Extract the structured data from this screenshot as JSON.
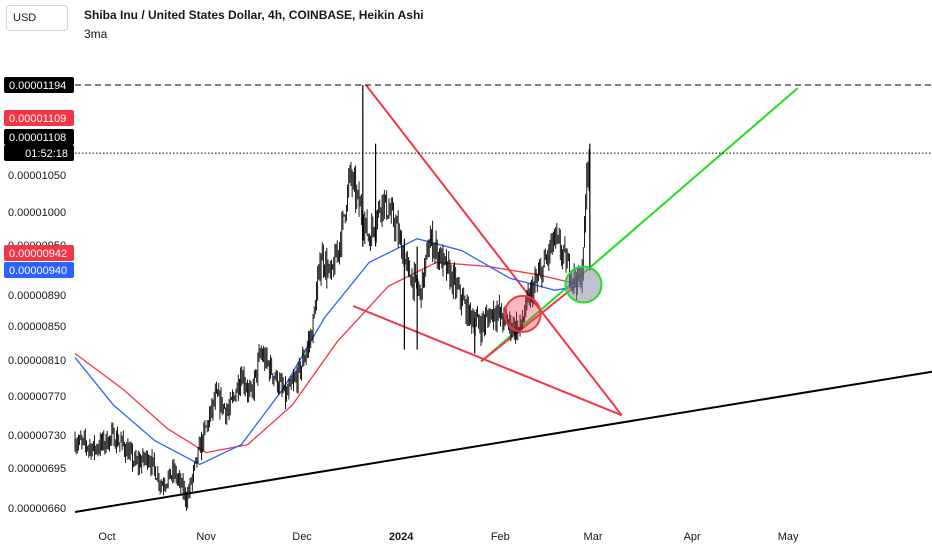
{
  "header": {
    "currency": "USD",
    "title": "Shiba Inu / United States Dollar, 4h, COINBASE, Heikin Ashi",
    "indicator": "3ma"
  },
  "chart_data": {
    "type": "candlestick",
    "title": "Shiba Inu / United States Dollar, 4h, COINBASE, Heikin Ashi",
    "ylim": [
      6.5e-06,
      1.205e-05
    ],
    "y_ticks": [
      "0.00001050",
      "0.00001000",
      "0.00000890",
      "0.00000850",
      "0.00000810",
      "0.00000770",
      "0.00000730",
      "0.00000695",
      "0.00000660"
    ],
    "x_ticks": [
      "Oct",
      "Nov",
      "Dec",
      "2024",
      "Feb",
      "Mar",
      "Apr",
      "May"
    ],
    "x_ticks_bold": [
      "2024"
    ],
    "price_tags": [
      {
        "label": "0.00001194",
        "color": "#000000"
      },
      {
        "label": "0.00001109",
        "color": "#f23645"
      },
      {
        "label": "0.00001108",
        "color": "#000000"
      },
      {
        "label": "01:52:18",
        "color": "#000000"
      },
      {
        "label": "0.00000942",
        "color": "#f23645"
      },
      {
        "label": "0.00000940",
        "color": "#2962ff"
      }
    ],
    "hidden_tick": "0.00000950",
    "path": [
      [
        "2023-09-21",
        7.45e-06
      ],
      [
        "2023-09-27",
        7.35e-06
      ],
      [
        "2023-10-03",
        7.5e-06
      ],
      [
        "2023-10-06",
        7.4e-06
      ],
      [
        "2023-10-10",
        7.15e-06
      ],
      [
        "2023-10-14",
        7.25e-06
      ],
      [
        "2023-10-18",
        6.9e-06
      ],
      [
        "2023-10-22",
        7.05e-06
      ],
      [
        "2023-10-26",
        6.72e-06
      ],
      [
        "2023-10-30",
        7.35e-06
      ],
      [
        "2023-11-04",
        8e-06
      ],
      [
        "2023-11-08",
        7.8e-06
      ],
      [
        "2023-11-12",
        8.3e-06
      ],
      [
        "2023-11-15",
        8e-06
      ],
      [
        "2023-11-18",
        8.55e-06
      ],
      [
        "2023-11-22",
        8.3e-06
      ],
      [
        "2023-11-26",
        8e-06
      ],
      [
        "2023-11-30",
        8.3e-06
      ],
      [
        "2023-12-04",
        8.8e-06
      ],
      [
        "2023-12-07",
        9.8e-06
      ],
      [
        "2023-12-10",
        9.5e-06
      ],
      [
        "2023-12-13",
        1e-05
      ],
      [
        "2023-12-16",
        1.08e-05
      ],
      [
        "2023-12-19",
        1.04e-05
      ],
      [
        "2023-12-22",
        1e-05
      ],
      [
        "2023-12-26",
        1.05e-05
      ],
      [
        "2023-12-30",
        1.02e-05
      ],
      [
        "2024-01-03",
        9.6e-06
      ],
      [
        "2024-01-07",
        9.3e-06
      ],
      [
        "2024-01-10",
        1e-05
      ],
      [
        "2024-01-14",
        9.7e-06
      ],
      [
        "2024-01-18",
        9.4e-06
      ],
      [
        "2024-01-22",
        9.05e-06
      ],
      [
        "2024-01-26",
        8.9e-06
      ],
      [
        "2024-01-30",
        9.1e-06
      ],
      [
        "2024-02-03",
        8.95e-06
      ],
      [
        "2024-02-07",
        8.85e-06
      ],
      [
        "2024-02-10",
        9.25e-06
      ],
      [
        "2024-02-14",
        9.6e-06
      ],
      [
        "2024-02-18",
        1e-05
      ],
      [
        "2024-02-21",
        9.75e-06
      ],
      [
        "2024-02-24",
        9.5e-06
      ],
      [
        "2024-02-26",
        9.45e-06
      ],
      [
        "2024-02-27",
        9.8e-06
      ],
      [
        "2024-02-28",
        1.08e-05
      ],
      [
        "2024-02-29",
        1.108e-05
      ]
    ],
    "spikes": [
      [
        "2023-12-20",
        1.194e-05,
        9.9e-06
      ],
      [
        "2023-12-24",
        1.12e-05,
        9.9e-06
      ],
      [
        "2024-01-02",
        1e-05,
        8.6e-06
      ],
      [
        "2024-01-06",
        9.9e-06,
        8.6e-06
      ],
      [
        "2024-01-24",
        9e-06,
        8.55e-06
      ],
      [
        "2024-02-29",
        1.12e-05,
        9.6e-06
      ]
    ],
    "ma_series": [
      {
        "color": "#f23645",
        "points": [
          [
            "2023-09-21",
            8.55e-06
          ],
          [
            "2023-10-06",
            8.1e-06
          ],
          [
            "2023-10-20",
            7.6e-06
          ],
          [
            "2023-11-01",
            7.3e-06
          ],
          [
            "2023-11-14",
            7.4e-06
          ],
          [
            "2023-11-28",
            7.9e-06
          ],
          [
            "2023-12-12",
            8.7e-06
          ],
          [
            "2023-12-28",
            9.4e-06
          ],
          [
            "2024-01-12",
            9.7e-06
          ],
          [
            "2024-01-28",
            9.65e-06
          ],
          [
            "2024-02-12",
            9.55e-06
          ],
          [
            "2024-02-26",
            9.42e-06
          ]
        ]
      },
      {
        "color": "#2962ff",
        "points": [
          [
            "2023-09-21",
            8.5e-06
          ],
          [
            "2023-10-03",
            7.9e-06
          ],
          [
            "2023-10-16",
            7.45e-06
          ],
          [
            "2023-10-30",
            7.15e-06
          ],
          [
            "2023-11-12",
            7.4e-06
          ],
          [
            "2023-11-25",
            8.1e-06
          ],
          [
            "2023-12-08",
            9e-06
          ],
          [
            "2023-12-22",
            9.7e-06
          ],
          [
            "2024-01-06",
            1e-05
          ],
          [
            "2024-01-20",
            9.85e-06
          ],
          [
            "2024-02-04",
            9.5e-06
          ],
          [
            "2024-02-18",
            9.35e-06
          ],
          [
            "2024-02-26",
            9.4e-06
          ]
        ]
      }
    ],
    "drawings": [
      {
        "name": "long-term-support-line",
        "color": "#000000",
        "points": [
          [
            "2023-09-21",
            6.55e-06
          ],
          [
            "2024-06-15",
            8.32e-06
          ]
        ]
      },
      {
        "name": "triangle-upper-line",
        "color": "#f23645",
        "points": [
          [
            "2023-12-21",
            1.194e-05
          ],
          [
            "2024-03-10",
            7.77e-06
          ]
        ]
      },
      {
        "name": "triangle-lower-line",
        "color": "#f23645",
        "points": [
          [
            "2023-12-17",
            9.15e-06
          ],
          [
            "2024-03-10",
            7.77e-06
          ]
        ]
      },
      {
        "name": "green-uptrend-line",
        "color": "#22dd22",
        "points": [
          [
            "2024-01-26",
            8.45e-06
          ],
          [
            "2024-05-04",
            1.19e-05
          ]
        ]
      },
      {
        "name": "triangle-base-line",
        "color": "#f23645",
        "points": [
          [
            "2024-01-26",
            8.45e-06
          ],
          [
            "2024-02-25",
            9.42e-06
          ]
        ]
      }
    ],
    "markers": [
      {
        "name": "red-circle-marker",
        "date": "2024-02-08",
        "value": 9.05e-06,
        "fill": "rgba(242,54,69,0.35)",
        "stroke": "#f23645"
      },
      {
        "name": "green-circle-marker",
        "date": "2024-02-27",
        "value": 9.42e-06,
        "fill": "rgba(140,140,170,0.55)",
        "stroke": "#22dd22"
      }
    ],
    "reference_lines": [
      {
        "name": "high-dashed-line",
        "value": 1.194e-05,
        "style": "dashed"
      },
      {
        "name": "last-price-dotted-line",
        "value": 1.108e-05,
        "style": "dotted"
      }
    ]
  }
}
